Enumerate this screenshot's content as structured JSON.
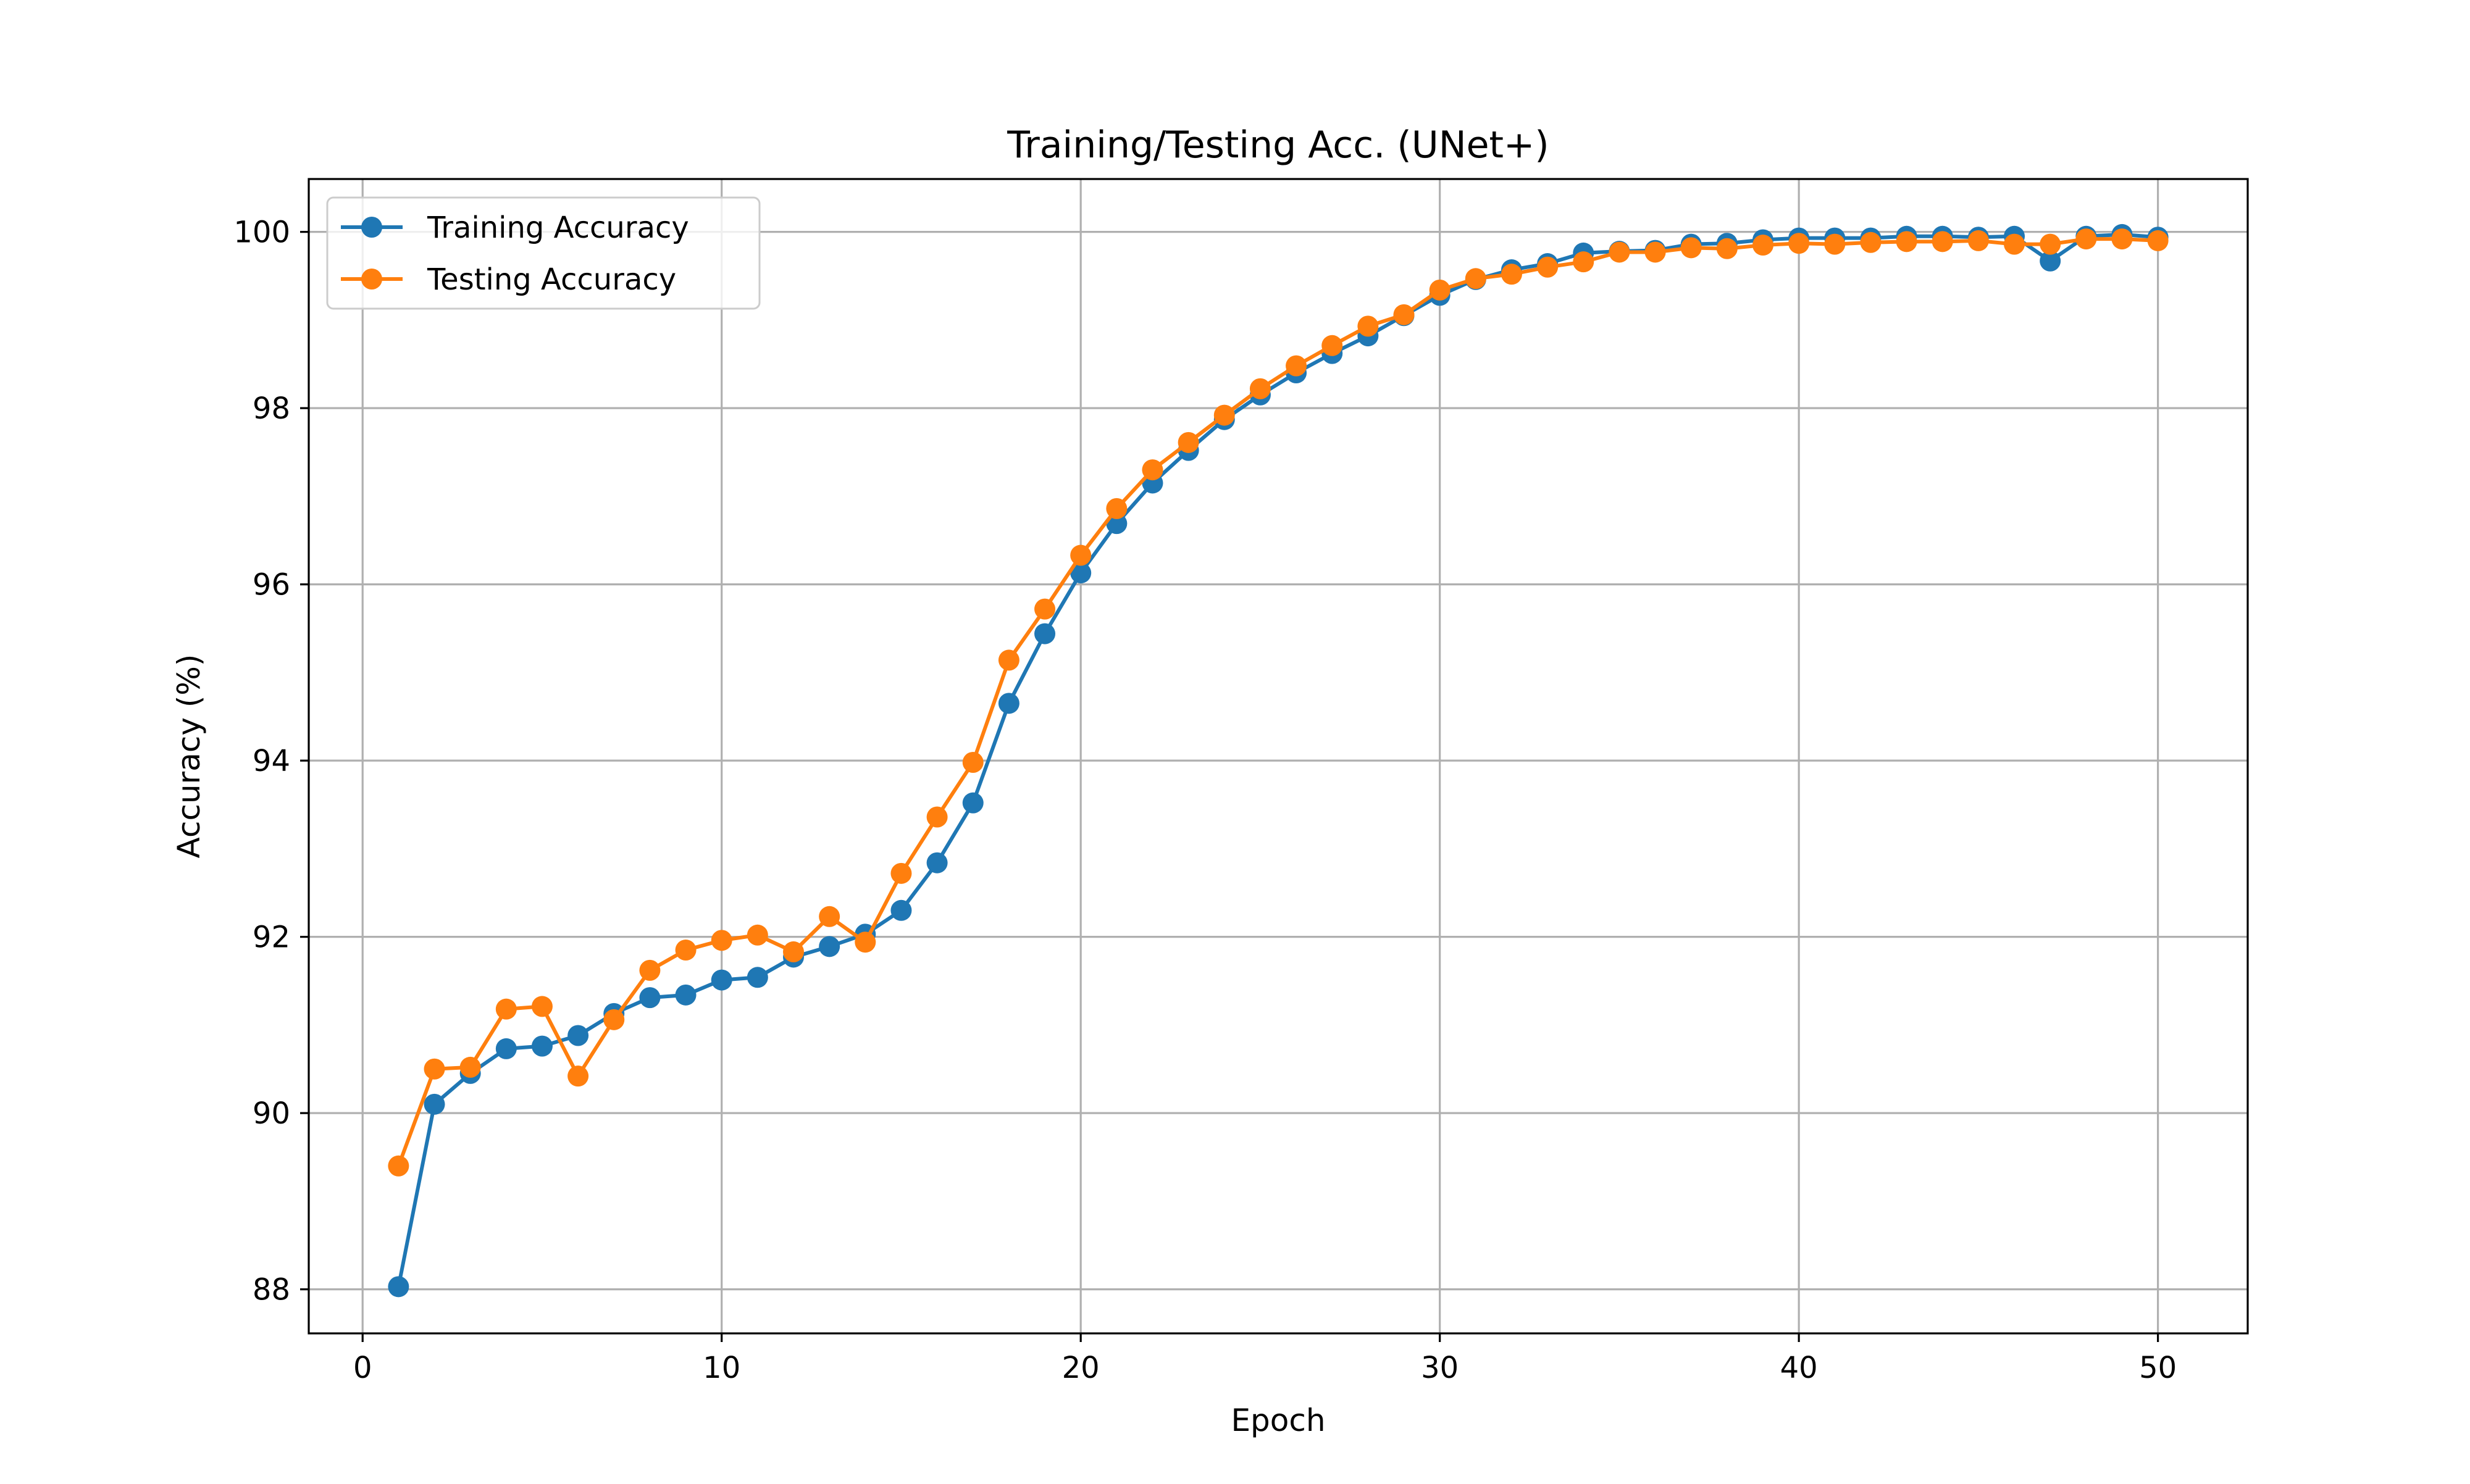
{
  "chart_data": {
    "type": "line",
    "title": "Training/Testing Acc. (UNet+)",
    "xlabel": "Epoch",
    "ylabel": "Accuracy (%)",
    "xlim": [
      -1.5,
      52.5
    ],
    "ylim": [
      87.5,
      100.6
    ],
    "xticks": [
      0,
      10,
      20,
      30,
      40,
      50
    ],
    "yticks": [
      88,
      90,
      92,
      94,
      96,
      98,
      100
    ],
    "grid": true,
    "legend_position": "upper-left",
    "x": [
      1,
      2,
      3,
      4,
      5,
      6,
      7,
      8,
      9,
      10,
      11,
      12,
      13,
      14,
      15,
      16,
      17,
      18,
      19,
      20,
      21,
      22,
      23,
      24,
      25,
      26,
      27,
      28,
      29,
      30,
      31,
      32,
      33,
      34,
      35,
      36,
      37,
      38,
      39,
      40,
      41,
      42,
      43,
      44,
      45,
      46,
      47,
      48,
      49,
      50
    ],
    "series": [
      {
        "name": "Training Accuracy",
        "color": "#1f77b4",
        "values": [
          88.03,
          90.1,
          90.45,
          90.73,
          90.76,
          90.88,
          91.13,
          91.31,
          91.34,
          91.51,
          91.54,
          91.77,
          91.89,
          92.03,
          92.3,
          92.84,
          93.52,
          94.65,
          95.44,
          96.13,
          96.69,
          97.15,
          97.52,
          97.87,
          98.15,
          98.4,
          98.62,
          98.82,
          99.05,
          99.28,
          99.46,
          99.57,
          99.64,
          99.76,
          99.78,
          99.79,
          99.86,
          99.87,
          99.91,
          99.93,
          99.93,
          99.93,
          99.95,
          99.95,
          99.94,
          99.95,
          99.67,
          99.95,
          99.97,
          99.94
        ]
      },
      {
        "name": "Testing Accuracy",
        "color": "#ff7f0e",
        "values": [
          89.4,
          90.5,
          90.52,
          91.18,
          91.21,
          90.42,
          91.06,
          91.62,
          91.85,
          91.96,
          92.02,
          91.83,
          92.23,
          91.94,
          92.72,
          93.36,
          93.98,
          95.14,
          95.72,
          96.33,
          96.86,
          97.3,
          97.61,
          97.92,
          98.22,
          98.48,
          98.71,
          98.93,
          99.06,
          99.34,
          99.47,
          99.52,
          99.6,
          99.66,
          99.77,
          99.77,
          99.82,
          99.81,
          99.85,
          99.87,
          99.86,
          99.88,
          99.89,
          99.89,
          99.9,
          99.86,
          99.86,
          99.92,
          99.92,
          99.9
        ]
      }
    ]
  }
}
